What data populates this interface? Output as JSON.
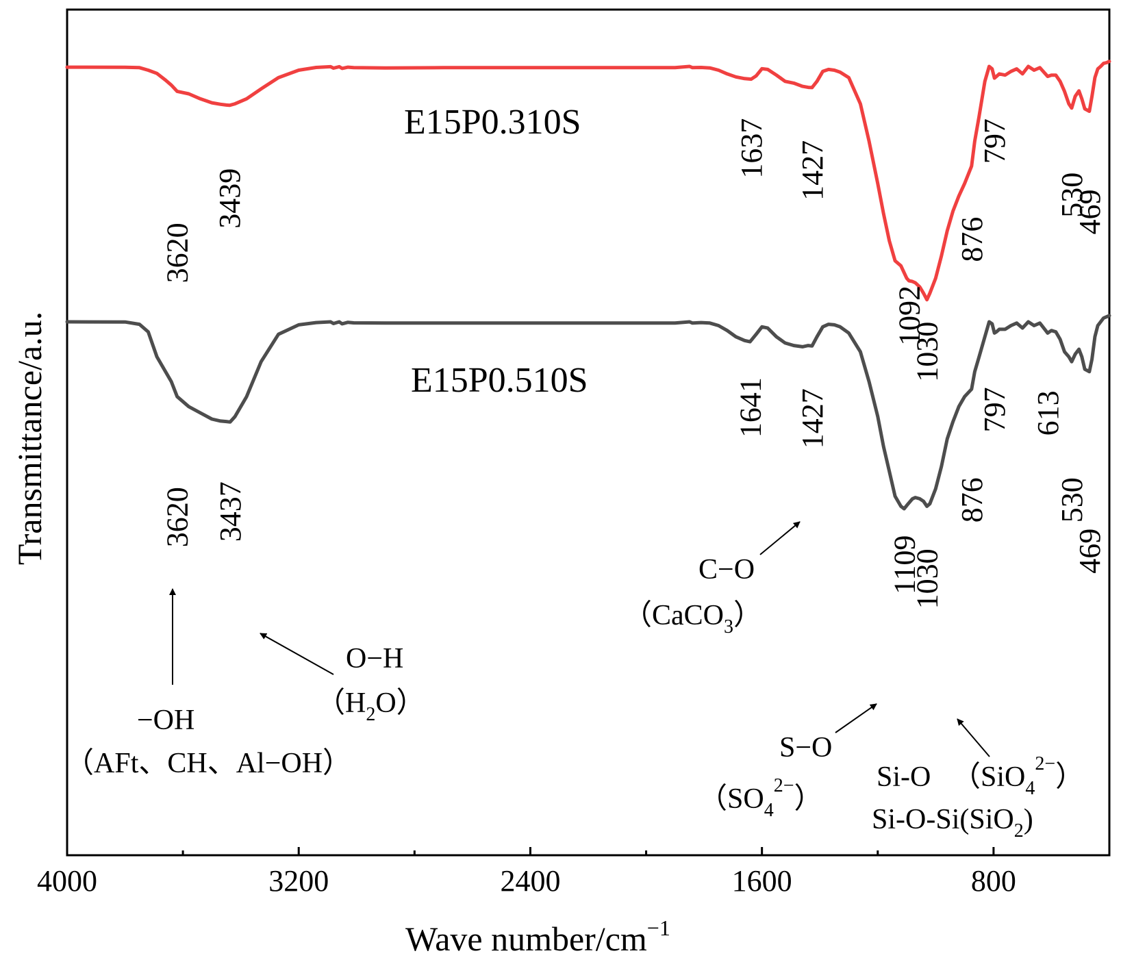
{
  "chart_data": {
    "type": "line",
    "xlabel": "Wave number/cm",
    "xlabel_sup": "−1",
    "ylabel": "Transmittance/a.u.",
    "xlim": [
      4000,
      400
    ],
    "x_reversed": true,
    "xticks": [
      4000,
      3200,
      2400,
      1600,
      800
    ],
    "xtick_labels": [
      "4000",
      "3200",
      "2400",
      "1600",
      "800"
    ],
    "minor_xticks": [
      3600,
      2800,
      2000,
      1200,
      400
    ],
    "yticks": [],
    "grid": false,
    "legend": "none",
    "series": [
      {
        "name": "E15P0.310S",
        "color": "#f04040",
        "x": [
          4000,
          3800,
          3750,
          3720,
          3690,
          3660,
          3640,
          3620,
          3580,
          3540,
          3500,
          3470,
          3450,
          3439,
          3420,
          3380,
          3330,
          3270,
          3200,
          3140,
          3090,
          3080,
          3060,
          3050,
          3030,
          3010,
          2900,
          2700,
          2500,
          2300,
          2100,
          1900,
          1850,
          1840,
          1810,
          1780,
          1750,
          1720,
          1690,
          1660,
          1637,
          1620,
          1600,
          1580,
          1550,
          1520,
          1490,
          1460,
          1440,
          1427,
          1410,
          1390,
          1370,
          1350,
          1330,
          1300,
          1260,
          1230,
          1200,
          1180,
          1160,
          1140,
          1120,
          1100,
          1092,
          1080,
          1070,
          1055,
          1042,
          1030,
          1020,
          1000,
          980,
          960,
          940,
          920,
          900,
          876,
          865,
          850,
          830,
          815,
          805,
          797,
          790,
          780,
          760,
          740,
          720,
          700,
          680,
          660,
          640,
          613,
          600,
          585,
          570,
          555,
          540,
          530,
          518,
          505,
          495,
          485,
          469,
          460,
          450,
          440,
          430,
          420,
          410,
          400
        ],
        "y": [
          3.0,
          3.2,
          5.0,
          15.0,
          28.0,
          55.0,
          75.0,
          100.0,
          110.0,
          130.0,
          146.0,
          152.0,
          155.0,
          156.0,
          150.0,
          130.0,
          90.0,
          45.0,
          15.0,
          4.0,
          1.0,
          7.0,
          1.0,
          8.0,
          3.0,
          5.0,
          6.0,
          5.0,
          5.0,
          5.0,
          5.0,
          5.0,
          0.0,
          5.0,
          4.0,
          6.0,
          15.0,
          30.0,
          42.0,
          49.0,
          51.0,
          38.0,
          9.0,
          12.0,
          35.0,
          60.0,
          67.0,
          80.0,
          84.0,
          85.0,
          60.0,
          20.0,
          12.0,
          15.0,
          23.0,
          45.0,
          150.0,
          300.0,
          470.0,
          590.0,
          700.0,
          780.0,
          800.0,
          850.0,
          860.0,
          863.0,
          868.0,
          885.0,
          910.0,
          936.0,
          910.0,
          850.0,
          760.0,
          660.0,
          580.0,
          520.0,
          470.0,
          400.0,
          300.0,
          200.0,
          60.0,
          0.0,
          10.0,
          47.0,
          40.0,
          30.0,
          35.0,
          20.0,
          10.0,
          30.0,
          0.0,
          15.0,
          5.0,
          40.0,
          35.0,
          35.0,
          60.0,
          100.0,
          150.0,
          167.0,
          120.0,
          98.0,
          130.0,
          170.0,
          180.0,
          120.0,
          45.0,
          10.0,
          0.0,
          -12.0,
          -15.0,
          -20.0
        ]
      },
      {
        "name": "E15P0.510S",
        "color": "#4d4d4d",
        "x": [
          4000,
          3800,
          3750,
          3720,
          3690,
          3660,
          3640,
          3620,
          3580,
          3540,
          3500,
          3470,
          3450,
          3437,
          3420,
          3380,
          3330,
          3270,
          3200,
          3140,
          3090,
          3080,
          3060,
          3050,
          3030,
          3010,
          2900,
          2700,
          2500,
          2300,
          2100,
          1900,
          1850,
          1840,
          1810,
          1780,
          1750,
          1720,
          1690,
          1660,
          1641,
          1620,
          1600,
          1580,
          1550,
          1520,
          1490,
          1460,
          1440,
          1427,
          1410,
          1390,
          1370,
          1350,
          1330,
          1300,
          1260,
          1230,
          1200,
          1180,
          1160,
          1140,
          1120,
          1109,
          1095,
          1080,
          1070,
          1055,
          1042,
          1030,
          1020,
          1000,
          980,
          960,
          940,
          920,
          900,
          876,
          865,
          850,
          830,
          815,
          805,
          797,
          790,
          780,
          760,
          740,
          720,
          700,
          680,
          660,
          640,
          613,
          600,
          585,
          570,
          555,
          540,
          530,
          518,
          505,
          495,
          485,
          469,
          460,
          450,
          440,
          430,
          420,
          410,
          400
        ],
        "y": [
          0.0,
          0.5,
          10.0,
          40.0,
          140.0,
          200.0,
          240.0,
          300.0,
          340.0,
          365.0,
          390.0,
          398.0,
          400.0,
          402.0,
          380.0,
          300.0,
          160.0,
          50.0,
          12.0,
          3.0,
          0.0,
          7.0,
          0.0,
          8.0,
          2.0,
          4.0,
          5.0,
          5.0,
          5.0,
          5.0,
          5.0,
          5.0,
          0.0,
          5.0,
          3.0,
          5.0,
          15.0,
          35.0,
          60.0,
          75.0,
          80.0,
          50.0,
          20.0,
          25.0,
          60.0,
          85.0,
          95.0,
          100.0,
          95.0,
          97.0,
          60.0,
          20.0,
          10.0,
          12.0,
          20.0,
          45.0,
          120.0,
          240.0,
          380.0,
          500.0,
          600.0,
          700.0,
          740.0,
          750.0,
          730.0,
          710.0,
          705.0,
          710.0,
          720.0,
          740.0,
          730.0,
          670.0,
          580.0,
          470.0,
          400.0,
          340.0,
          300.0,
          270.0,
          200.0,
          140.0,
          60.0,
          0.0,
          8.0,
          45.0,
          40.0,
          30.0,
          30.0,
          15.0,
          5.0,
          25.0,
          0.0,
          15.0,
          5.0,
          45.0,
          35.0,
          40.0,
          70.0,
          120.0,
          140.0,
          160.0,
          130.0,
          110.0,
          140.0,
          190.0,
          200.0,
          150.0,
          60.0,
          15.0,
          0.0,
          -15.0,
          -20.0,
          -25.0
        ]
      }
    ],
    "peak_labels": [
      {
        "series": 0,
        "x": 3620,
        "text": "3620"
      },
      {
        "series": 0,
        "x": 3439,
        "text": "3439"
      },
      {
        "series": 0,
        "x": 1637,
        "text": "1637"
      },
      {
        "series": 0,
        "x": 1427,
        "text": "1427"
      },
      {
        "series": 0,
        "x": 1092,
        "text": "1092"
      },
      {
        "series": 0,
        "x": 1030,
        "text": "1030"
      },
      {
        "series": 0,
        "x": 876,
        "text": "876"
      },
      {
        "series": 0,
        "x": 797,
        "text": "797"
      },
      {
        "series": 0,
        "x": 530,
        "text": "530"
      },
      {
        "series": 0,
        "x": 469,
        "text": "469"
      },
      {
        "series": 1,
        "x": 3620,
        "text": "3620"
      },
      {
        "series": 1,
        "x": 3437,
        "text": "3437"
      },
      {
        "series": 1,
        "x": 1641,
        "text": "1641"
      },
      {
        "series": 1,
        "x": 1427,
        "text": "1427"
      },
      {
        "series": 1,
        "x": 1109,
        "text": "1109"
      },
      {
        "series": 1,
        "x": 1030,
        "text": "1030"
      },
      {
        "series": 1,
        "x": 876,
        "text": "876"
      },
      {
        "series": 1,
        "x": 797,
        "text": "797"
      },
      {
        "series": 1,
        "x": 613,
        "text": "613"
      },
      {
        "series": 1,
        "x": 530,
        "text": "530"
      },
      {
        "series": 1,
        "x": 469,
        "text": "469"
      }
    ],
    "annotations": {
      "oh": {
        "line1": "−OH",
        "line2": "（AFt、CH、Al−OH）"
      },
      "water": {
        "line1": "O−H",
        "line2_pre": "（H",
        "line2_sub": "2",
        "line2_post": "O）"
      },
      "co": {
        "line1": "C−O",
        "line2_pre": "（CaCO",
        "line2_sub": "3",
        "line2_post": "）"
      },
      "so": {
        "line1": "S−O",
        "line2_pre": "（SO",
        "line2_sub": "4",
        "line2_sup": "2−",
        "line2_post": "）"
      },
      "sio": {
        "line1": "Si-O",
        "line2_pre": "Si-O-Si(SiO",
        "line2_sub": "2",
        "line2_post": ")",
        "side_pre": "（SiO",
        "side_sub": "4",
        "side_sup": "2−",
        "side_post": "）"
      }
    }
  }
}
